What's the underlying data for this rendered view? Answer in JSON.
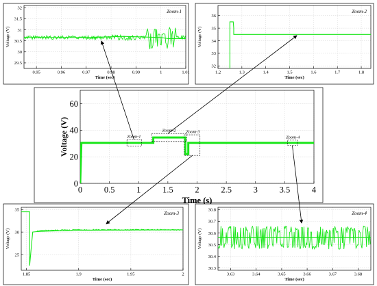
{
  "colors": {
    "series": "#19e619",
    "axis": "#000000",
    "arrow": "#000000",
    "background": "#ffffff"
  },
  "chart_data": [
    {
      "id": "main",
      "type": "line",
      "xlabel": "Time (s)",
      "ylabel": "Voltage (V)",
      "xlim": [
        0,
        4
      ],
      "ylim": [
        0,
        70
      ],
      "xticks": [
        "0",
        "0.5",
        "1",
        "1.5",
        "2",
        "2.5",
        "3",
        "3.5",
        "4"
      ],
      "yticks": [
        "0",
        "20",
        "40",
        "60"
      ],
      "grid": true,
      "series": [
        {
          "x": [
            0,
            0.02,
            0.05,
            1.25,
            1.25,
            1.8,
            1.8,
            1.85,
            1.85,
            4.0
          ],
          "y": [
            0,
            30.5,
            30.5,
            30.5,
            34.5,
            34.5,
            22,
            22,
            30.5,
            30.5
          ]
        }
      ],
      "annotations": [
        "Zoom-1",
        "Zoom-2",
        "Zoom-3",
        "Zoom-4"
      ]
    },
    {
      "id": "zoom1",
      "type": "line",
      "title": "Zoom-1",
      "xlabel": "Time (sec)",
      "ylabel": "Voltage (V)",
      "xlim": [
        0.945,
        1.01
      ],
      "ylim": [
        29.25,
        32.1
      ],
      "xticks": [
        "0.95",
        "0.96",
        "0.97",
        "0.98",
        "0.99",
        "1",
        "1.01"
      ],
      "yticks": [
        "29.5",
        "30",
        "30.5",
        "31",
        "31.5",
        "32"
      ],
      "grid": true,
      "series": [
        {
          "x": [
            0.945,
            0.97,
            0.985,
            1.0,
            1.003,
            1.01
          ],
          "y": [
            30.65,
            30.65,
            30.7,
            30.65,
            30.6,
            30.6
          ]
        }
      ]
    },
    {
      "id": "zoom2",
      "type": "line",
      "title": "Zoom-2",
      "xlabel": "Time (sec)",
      "ylabel": "Voltage (V)",
      "xlim": [
        1.2,
        1.84
      ],
      "ylim": [
        31.8,
        36.8
      ],
      "xticks": [
        "1.2",
        "1.3",
        "1.4",
        "1.5",
        "1.6",
        "1.7",
        "1.8"
      ],
      "yticks": [
        "32",
        "33",
        "34",
        "35",
        "36"
      ],
      "grid": true,
      "series": [
        {
          "x": [
            1.25,
            1.25,
            1.256,
            1.264,
            1.266,
            1.266,
            1.84
          ],
          "y": [
            31.8,
            35.5,
            35.5,
            35.5,
            35.0,
            34.5,
            34.5
          ]
        }
      ]
    },
    {
      "id": "zoom3",
      "type": "line",
      "title": "Zoom-3",
      "xlabel": "Time (sec)",
      "ylabel": "Voltage (V)",
      "xlim": [
        1.845,
        2.0
      ],
      "ylim": [
        21.5,
        35.5
      ],
      "xticks": [
        "1.85",
        "1.9",
        "1.95",
        "2"
      ],
      "yticks": [
        "25",
        "30",
        "35"
      ],
      "grid": true,
      "series": [
        {
          "x": [
            1.845,
            1.853,
            1.853,
            1.856,
            1.86,
            1.87,
            1.9,
            2.0
          ],
          "y": [
            34.5,
            34.5,
            22.5,
            30.0,
            30.1,
            30.2,
            30.4,
            30.5
          ]
        }
      ]
    },
    {
      "id": "zoom4",
      "type": "line",
      "title": "Zoom-4",
      "xlabel": "Time (sec)",
      "ylabel": "Voltage (V)",
      "xlim": [
        3.625,
        3.685
      ],
      "ylim": [
        30.28,
        30.82
      ],
      "xticks": [
        "3.63",
        "3.64",
        "3.65",
        "3.66",
        "3.67",
        "3.68"
      ],
      "yticks": [
        "30.3",
        "30.4",
        "30.5",
        "30.6",
        "30.7",
        "30.8"
      ],
      "grid": true,
      "series": [
        {
          "x": [
            3.625,
            3.685
          ],
          "y": [
            30.56,
            30.56
          ]
        }
      ]
    }
  ]
}
